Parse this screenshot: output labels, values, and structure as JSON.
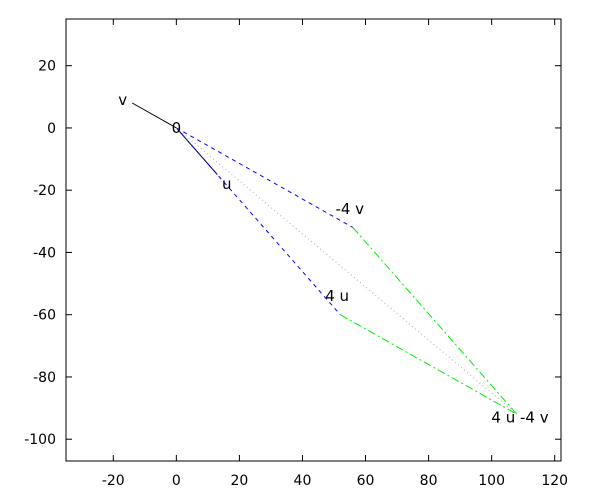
{
  "chart_data": {
    "type": "line",
    "xlim": [
      -35,
      122
    ],
    "ylim": [
      -107,
      35
    ],
    "xticks": [
      -20,
      0,
      20,
      40,
      60,
      80,
      100,
      120
    ],
    "yticks": [
      20,
      0,
      -20,
      -40,
      -60,
      -80,
      -100
    ],
    "xtick_labels": [
      "-20",
      "0",
      "20",
      "40",
      "60",
      "80",
      "100",
      "120"
    ],
    "ytick_labels": [
      "20",
      "0",
      "-20",
      "-40",
      "-60",
      "-80",
      "-100"
    ],
    "grid": false,
    "series": [
      {
        "style": "solid",
        "color": "#000000",
        "x": [
          -14,
          0
        ],
        "y": [
          8,
          0
        ]
      },
      {
        "style": "solid",
        "color": "#000000",
        "x": [
          0,
          13
        ],
        "y": [
          0,
          -15
        ]
      },
      {
        "style": "dashed",
        "color": "#0000ff",
        "x": [
          0,
          56
        ],
        "y": [
          0,
          -32
        ]
      },
      {
        "style": "dashed",
        "color": "#0000ff",
        "x": [
          0,
          52
        ],
        "y": [
          0,
          -60
        ]
      },
      {
        "style": "dash-dot",
        "color": "#00ee00",
        "x": [
          56,
          108
        ],
        "y": [
          -32,
          -92
        ]
      },
      {
        "style": "dash-dot",
        "color": "#00ee00",
        "x": [
          52,
          108
        ],
        "y": [
          -60,
          -92
        ]
      },
      {
        "style": "dotted",
        "color": "#aaaaaa",
        "x": [
          0,
          108
        ],
        "y": [
          0,
          -92
        ]
      }
    ],
    "labels": [
      {
        "text": "v",
        "x": -17,
        "y": 9
      },
      {
        "text": "0",
        "x": 0,
        "y": 0
      },
      {
        "text": "u",
        "x": 16,
        "y": -18
      },
      {
        "text": "-4 v",
        "x": 55,
        "y": -26
      },
      {
        "text": "4 u",
        "x": 51,
        "y": -54
      },
      {
        "text": "4 u -4 v",
        "x": 109,
        "y": -93
      }
    ]
  }
}
